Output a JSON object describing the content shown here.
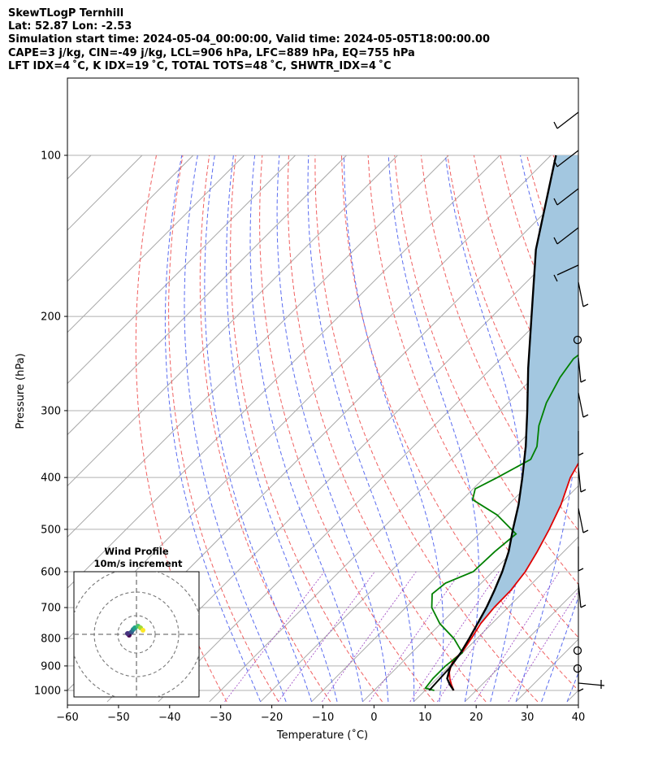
{
  "header": {
    "line1": "SkewTLogP Ternhill",
    "line2": "Lat: 52.87   Lon: -2.53",
    "line3": "Simulation start time: 2024-05-04_00:00:00, Valid time: 2024-05-05T18:00:00.00",
    "line4": "CAPE=3 j/kg, CIN=-49 j/kg, LCL=906 hPa, LFC=889 hPa, EQ=755 hPa",
    "line5": "LFT IDX=4 ˚C, K IDX=19 ˚C, TOTAL TOTS=48 ˚C, SHWTR_IDX=4 ˚C"
  },
  "chart_data": {
    "type": "line",
    "skew_t": true,
    "xlabel": "Temperature (˚C)",
    "ylabel": "Pressure (hPa)",
    "x_ticks": [
      "−60",
      "−50",
      "−40",
      "−30",
      "−20",
      "−10",
      "0",
      "10",
      "20",
      "30",
      "40"
    ],
    "y_ticks": [
      "100",
      "200",
      "300",
      "400",
      "500",
      "600",
      "700",
      "800",
      "900",
      "1000"
    ],
    "xlim": [
      -60,
      40
    ],
    "ylim": [
      1050,
      100
    ],
    "y_scale": "log",
    "temperature_color": "#e00000",
    "dewpoint_color": "#008000",
    "parcel_color": "#000000",
    "cape_fill_color": "#a3c7e0",
    "temperature": [
      {
        "p": 1000,
        "x": 15.6
      },
      {
        "p": 975,
        "x": 14.0
      },
      {
        "p": 950,
        "x": 12.5
      },
      {
        "p": 925,
        "x": 11.2
      },
      {
        "p": 900,
        "x": 10.3
      },
      {
        "p": 875,
        "x": 9.5
      },
      {
        "p": 850,
        "x": 9.8
      },
      {
        "p": 800,
        "x": 8.9
      },
      {
        "p": 750,
        "x": 7.8
      },
      {
        "p": 700,
        "x": 7.3
      },
      {
        "p": 650,
        "x": 7.2
      },
      {
        "p": 600,
        "x": 6.4
      },
      {
        "p": 550,
        "x": 4.8
      },
      {
        "p": 500,
        "x": 2.8
      },
      {
        "p": 450,
        "x": 0.3
      },
      {
        "p": 400,
        "x": -3.2
      },
      {
        "p": 350,
        "x": -5.8
      },
      {
        "p": 300,
        "x": -10.0
      },
      {
        "p": 285,
        "x": -11.9
      },
      {
        "p": 265,
        "x": -14.2
      },
      {
        "p": 250,
        "x": -13.5
      },
      {
        "p": 230,
        "x": -11.5
      },
      {
        "p": 210,
        "x": -5.4
      },
      {
        "p": 200,
        "x": -3.8
      },
      {
        "p": 180,
        "x": 0.0
      },
      {
        "p": 160,
        "x": 4.9
      },
      {
        "p": 150,
        "x": 8.5
      },
      {
        "p": 130,
        "x": 11.8
      },
      {
        "p": 115,
        "x": 15.0
      },
      {
        "p": 100,
        "x": 18.5
      }
    ],
    "dewpoint": [
      {
        "p": 1000,
        "x": 11.8
      },
      {
        "p": 990,
        "x": 9.6
      },
      {
        "p": 950,
        "x": 9.2
      },
      {
        "p": 900,
        "x": 9.2
      },
      {
        "p": 850,
        "x": 9.9
      },
      {
        "p": 800,
        "x": 5.5
      },
      {
        "p": 750,
        "x": -0.2
      },
      {
        "p": 700,
        "x": -4.9
      },
      {
        "p": 660,
        "x": -7.5
      },
      {
        "p": 630,
        "x": -7.0
      },
      {
        "p": 600,
        "x": -3.8
      },
      {
        "p": 550,
        "x": -3.5
      },
      {
        "p": 510,
        "x": -2.8
      },
      {
        "p": 470,
        "x": -10.2
      },
      {
        "p": 440,
        "x": -18.0
      },
      {
        "p": 420,
        "x": -19.6
      },
      {
        "p": 400,
        "x": -17.5
      },
      {
        "p": 370,
        "x": -14.5
      },
      {
        "p": 350,
        "x": -15.8
      },
      {
        "p": 320,
        "x": -19.5
      },
      {
        "p": 290,
        "x": -22.5
      },
      {
        "p": 260,
        "x": -24.8
      },
      {
        "p": 240,
        "x": -25.8
      },
      {
        "p": 220,
        "x": -24.5
      },
      {
        "p": 200,
        "x": -26.2
      },
      {
        "p": 185,
        "x": -28.0
      },
      {
        "p": 175,
        "x": -29.6
      },
      {
        "p": 165,
        "x": -28.3
      },
      {
        "p": 150,
        "x": -24.5
      },
      {
        "p": 130,
        "x": -18.8
      },
      {
        "p": 115,
        "x": -14.0
      },
      {
        "p": 100,
        "x": -11.2
      }
    ],
    "parcel": [
      {
        "p": 1000,
        "x": 15.6
      },
      {
        "p": 975,
        "x": 13.7
      },
      {
        "p": 950,
        "x": 12.0
      },
      {
        "p": 906,
        "x": 10.4
      },
      {
        "p": 850,
        "x": 9.6
      },
      {
        "p": 800,
        "x": 8.5
      },
      {
        "p": 750,
        "x": 7.2
      },
      {
        "p": 700,
        "x": 5.8
      },
      {
        "p": 650,
        "x": 4.0
      },
      {
        "p": 600,
        "x": 1.9
      },
      {
        "p": 550,
        "x": -0.8
      },
      {
        "p": 500,
        "x": -4.3
      },
      {
        "p": 450,
        "x": -8.0
      },
      {
        "p": 400,
        "x": -12.6
      },
      {
        "p": 350,
        "x": -18.0
      },
      {
        "p": 300,
        "x": -24.7
      },
      {
        "p": 250,
        "x": -32.8
      },
      {
        "p": 200,
        "x": -42.3
      },
      {
        "p": 150,
        "x": -54.5
      },
      {
        "p": 100,
        "x": -69.0
      }
    ],
    "parcel_base": [
      {
        "p": 1000,
        "x": 10.8
      },
      {
        "p": 906,
        "x": 10.4
      }
    ],
    "wind_profile": {
      "title": "Wind Profile",
      "subtitle": "10m/s increment"
    }
  }
}
